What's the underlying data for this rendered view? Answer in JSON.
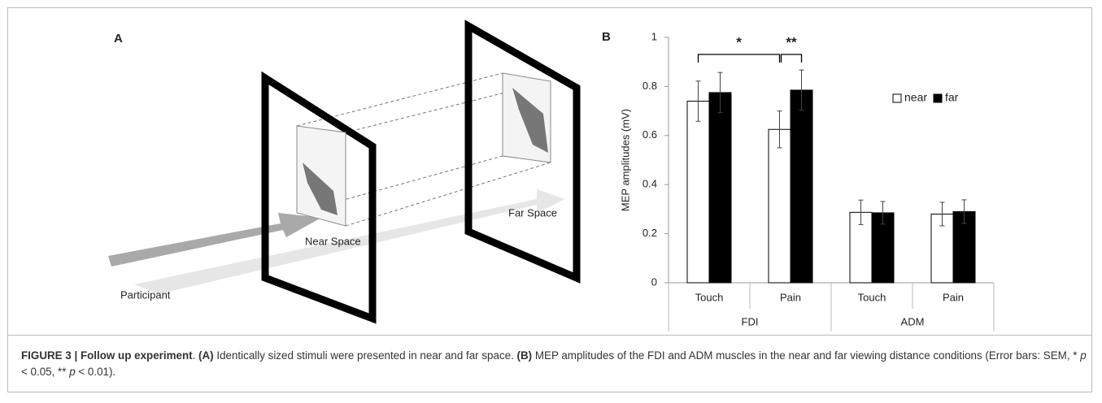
{
  "panel_a": {
    "label": "A",
    "near_label": "Near Space",
    "far_label": "Far Space",
    "participant_label": "Participant"
  },
  "chart_data": {
    "type": "bar",
    "panel_label": "B",
    "ylabel": "MEP amplitudes (mV)",
    "categories": [
      "Touch",
      "Pain",
      "Touch",
      "Pain"
    ],
    "groups": [
      "FDI",
      "ADM"
    ],
    "series": [
      {
        "name": "near",
        "color": "#ffffff",
        "values": [
          0.74,
          0.625,
          0.287,
          0.28
        ],
        "errors": [
          0.082,
          0.075,
          0.05,
          0.048
        ]
      },
      {
        "name": "far",
        "color": "#000000",
        "values": [
          0.775,
          0.785,
          0.285,
          0.29
        ],
        "errors": [
          0.082,
          0.082,
          0.046,
          0.048
        ]
      }
    ],
    "ylim": [
      0,
      1
    ],
    "yticks": [
      0,
      0.2,
      0.4,
      0.6,
      0.8,
      1
    ],
    "grid": false,
    "legend": "right",
    "significance": [
      "*",
      "**"
    ]
  },
  "caption": [
    {
      "text": "FIGURE 3 | Follow up experiment",
      "style": "bold"
    },
    {
      "text": ". ",
      "style": "normal"
    },
    {
      "text": "(A)",
      "style": "bold"
    },
    {
      "text": " Identically sized stimuli were presented in near and far space. ",
      "style": "normal"
    },
    {
      "text": "(B)",
      "style": "bold"
    },
    {
      "text": " MEP amplitudes of the FDI and ADM muscles in the near and far viewing distance conditions (Error bars: SEM, * ",
      "style": "normal"
    },
    {
      "text": "p",
      "style": "italic"
    },
    {
      "text": " < 0.05, ** ",
      "style": "normal"
    },
    {
      "text": "p",
      "style": "italic"
    },
    {
      "text": " < 0.01).",
      "style": "normal"
    }
  ]
}
